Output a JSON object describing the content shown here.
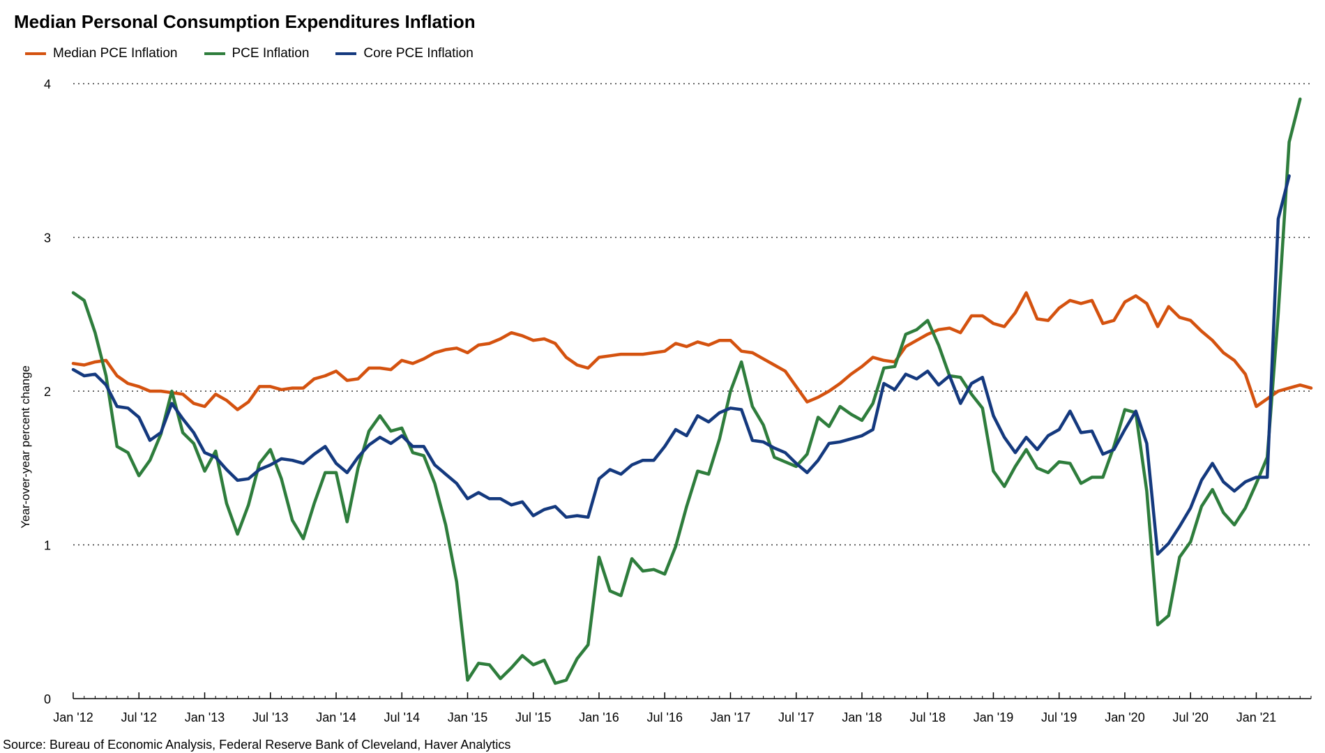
{
  "chart_data": {
    "type": "line",
    "title": "Median Personal Consumption Expenditures Inflation",
    "ylabel": "Year-over-year percent change",
    "xlabel": "",
    "ylim": [
      0,
      4
    ],
    "yticks": [
      0,
      1,
      2,
      3,
      4
    ],
    "grid": "horizontal dotted",
    "legend_position": "top-left",
    "x_start": "Jan 2012",
    "x_frequency": "monthly",
    "x_months_range": [
      0,
      113
    ],
    "x_ticks": [
      {
        "label": "Jan '12",
        "month": 0
      },
      {
        "label": "Jul '12",
        "month": 6
      },
      {
        "label": "Jan '13",
        "month": 12
      },
      {
        "label": "Jul '13",
        "month": 18
      },
      {
        "label": "Jan '14",
        "month": 24
      },
      {
        "label": "Jul '14",
        "month": 30
      },
      {
        "label": "Jan '15",
        "month": 36
      },
      {
        "label": "Jul '15",
        "month": 42
      },
      {
        "label": "Jan '16",
        "month": 48
      },
      {
        "label": "Jul '16",
        "month": 54
      },
      {
        "label": "Jan '17",
        "month": 60
      },
      {
        "label": "Jul '17",
        "month": 66
      },
      {
        "label": "Jan '18",
        "month": 72
      },
      {
        "label": "Jul '18",
        "month": 78
      },
      {
        "label": "Jan '19",
        "month": 84
      },
      {
        "label": "Jul '19",
        "month": 90
      },
      {
        "label": "Jan '20",
        "month": 96
      },
      {
        "label": "Jul '20",
        "month": 102
      },
      {
        "label": "Jan '21",
        "month": 108
      }
    ],
    "series": [
      {
        "name": "Median PCE Inflation",
        "color": "#D4520F",
        "values": [
          2.18,
          2.17,
          2.19,
          2.2,
          2.1,
          2.05,
          2.03,
          2.0,
          2.0,
          1.99,
          1.98,
          1.92,
          1.9,
          1.98,
          1.94,
          1.88,
          1.93,
          2.03,
          2.03,
          2.01,
          2.02,
          2.02,
          2.08,
          2.1,
          2.13,
          2.07,
          2.08,
          2.15,
          2.15,
          2.14,
          2.2,
          2.18,
          2.21,
          2.25,
          2.27,
          2.28,
          2.25,
          2.3,
          2.31,
          2.34,
          2.38,
          2.36,
          2.33,
          2.34,
          2.31,
          2.22,
          2.17,
          2.15,
          2.22,
          2.23,
          2.24,
          2.24,
          2.24,
          2.25,
          2.26,
          2.31,
          2.29,
          2.32,
          2.3,
          2.33,
          2.33,
          2.26,
          2.25,
          2.21,
          2.17,
          2.13,
          2.03,
          1.93,
          1.96,
          2.0,
          2.05,
          2.11,
          2.16,
          2.22,
          2.2,
          2.19,
          2.29,
          2.33,
          2.37,
          2.4,
          2.41,
          2.38,
          2.49,
          2.49,
          2.44,
          2.42,
          2.51,
          2.64,
          2.47,
          2.46,
          2.54,
          2.59,
          2.57,
          2.59,
          2.44,
          2.46,
          2.58,
          2.62,
          2.57,
          2.42,
          2.55,
          2.48,
          2.46,
          2.39,
          2.33,
          2.25,
          2.2,
          2.11,
          1.9,
          1.95,
          2.0,
          2.02,
          2.04,
          2.02
        ]
      },
      {
        "name": "PCE Inflation",
        "color": "#2E7D3C",
        "values": [
          2.64,
          2.59,
          2.38,
          2.1,
          1.64,
          1.6,
          1.45,
          1.55,
          1.72,
          2.0,
          1.73,
          1.66,
          1.48,
          1.61,
          1.27,
          1.07,
          1.26,
          1.53,
          1.62,
          1.43,
          1.16,
          1.04,
          1.27,
          1.47,
          1.47,
          1.15,
          1.5,
          1.74,
          1.84,
          1.74,
          1.76,
          1.6,
          1.58,
          1.4,
          1.13,
          0.76,
          0.12,
          0.23,
          0.22,
          0.13,
          0.2,
          0.28,
          0.22,
          0.25,
          0.1,
          0.12,
          0.26,
          0.35,
          0.92,
          0.7,
          0.67,
          0.91,
          0.83,
          0.84,
          0.81,
          0.99,
          1.25,
          1.48,
          1.46,
          1.69,
          2.0,
          2.19,
          1.9,
          1.78,
          1.57,
          1.54,
          1.51,
          1.59,
          1.83,
          1.77,
          1.9,
          1.85,
          1.81,
          1.92,
          2.15,
          2.16,
          2.37,
          2.4,
          2.46,
          2.3,
          2.1,
          2.09,
          1.98,
          1.89,
          1.48,
          1.38,
          1.51,
          1.62,
          1.5,
          1.47,
          1.54,
          1.53,
          1.4,
          1.44,
          1.44,
          1.64,
          1.88,
          1.86,
          1.35,
          0.48,
          0.54,
          0.92,
          1.02,
          1.25,
          1.36,
          1.21,
          1.13,
          1.24,
          1.4,
          1.57,
          2.5,
          3.62,
          3.9
        ]
      },
      {
        "name": "Core PCE Inflation",
        "color": "#14397E",
        "values": [
          2.14,
          2.1,
          2.11,
          2.04,
          1.9,
          1.89,
          1.83,
          1.68,
          1.73,
          1.92,
          1.82,
          1.73,
          1.6,
          1.57,
          1.49,
          1.42,
          1.43,
          1.49,
          1.52,
          1.56,
          1.55,
          1.53,
          1.59,
          1.64,
          1.53,
          1.47,
          1.57,
          1.65,
          1.7,
          1.66,
          1.71,
          1.64,
          1.64,
          1.52,
          1.46,
          1.4,
          1.3,
          1.34,
          1.3,
          1.3,
          1.26,
          1.28,
          1.19,
          1.23,
          1.25,
          1.18,
          1.19,
          1.18,
          1.43,
          1.49,
          1.46,
          1.52,
          1.55,
          1.55,
          1.64,
          1.75,
          1.71,
          1.84,
          1.8,
          1.86,
          1.89,
          1.88,
          1.68,
          1.67,
          1.63,
          1.6,
          1.53,
          1.47,
          1.55,
          1.66,
          1.67,
          1.69,
          1.71,
          1.75,
          2.05,
          2.01,
          2.11,
          2.08,
          2.13,
          2.04,
          2.1,
          1.92,
          2.05,
          2.09,
          1.84,
          1.7,
          1.6,
          1.7,
          1.62,
          1.71,
          1.75,
          1.87,
          1.73,
          1.74,
          1.59,
          1.62,
          1.75,
          1.87,
          1.66,
          0.94,
          1.01,
          1.12,
          1.24,
          1.42,
          1.53,
          1.41,
          1.35,
          1.41,
          1.44,
          1.44,
          3.12,
          3.4
        ]
      }
    ],
    "source": "Source: Bureau of Economic Analysis, Federal Reserve Bank of Cleveland, Haver Analytics"
  }
}
